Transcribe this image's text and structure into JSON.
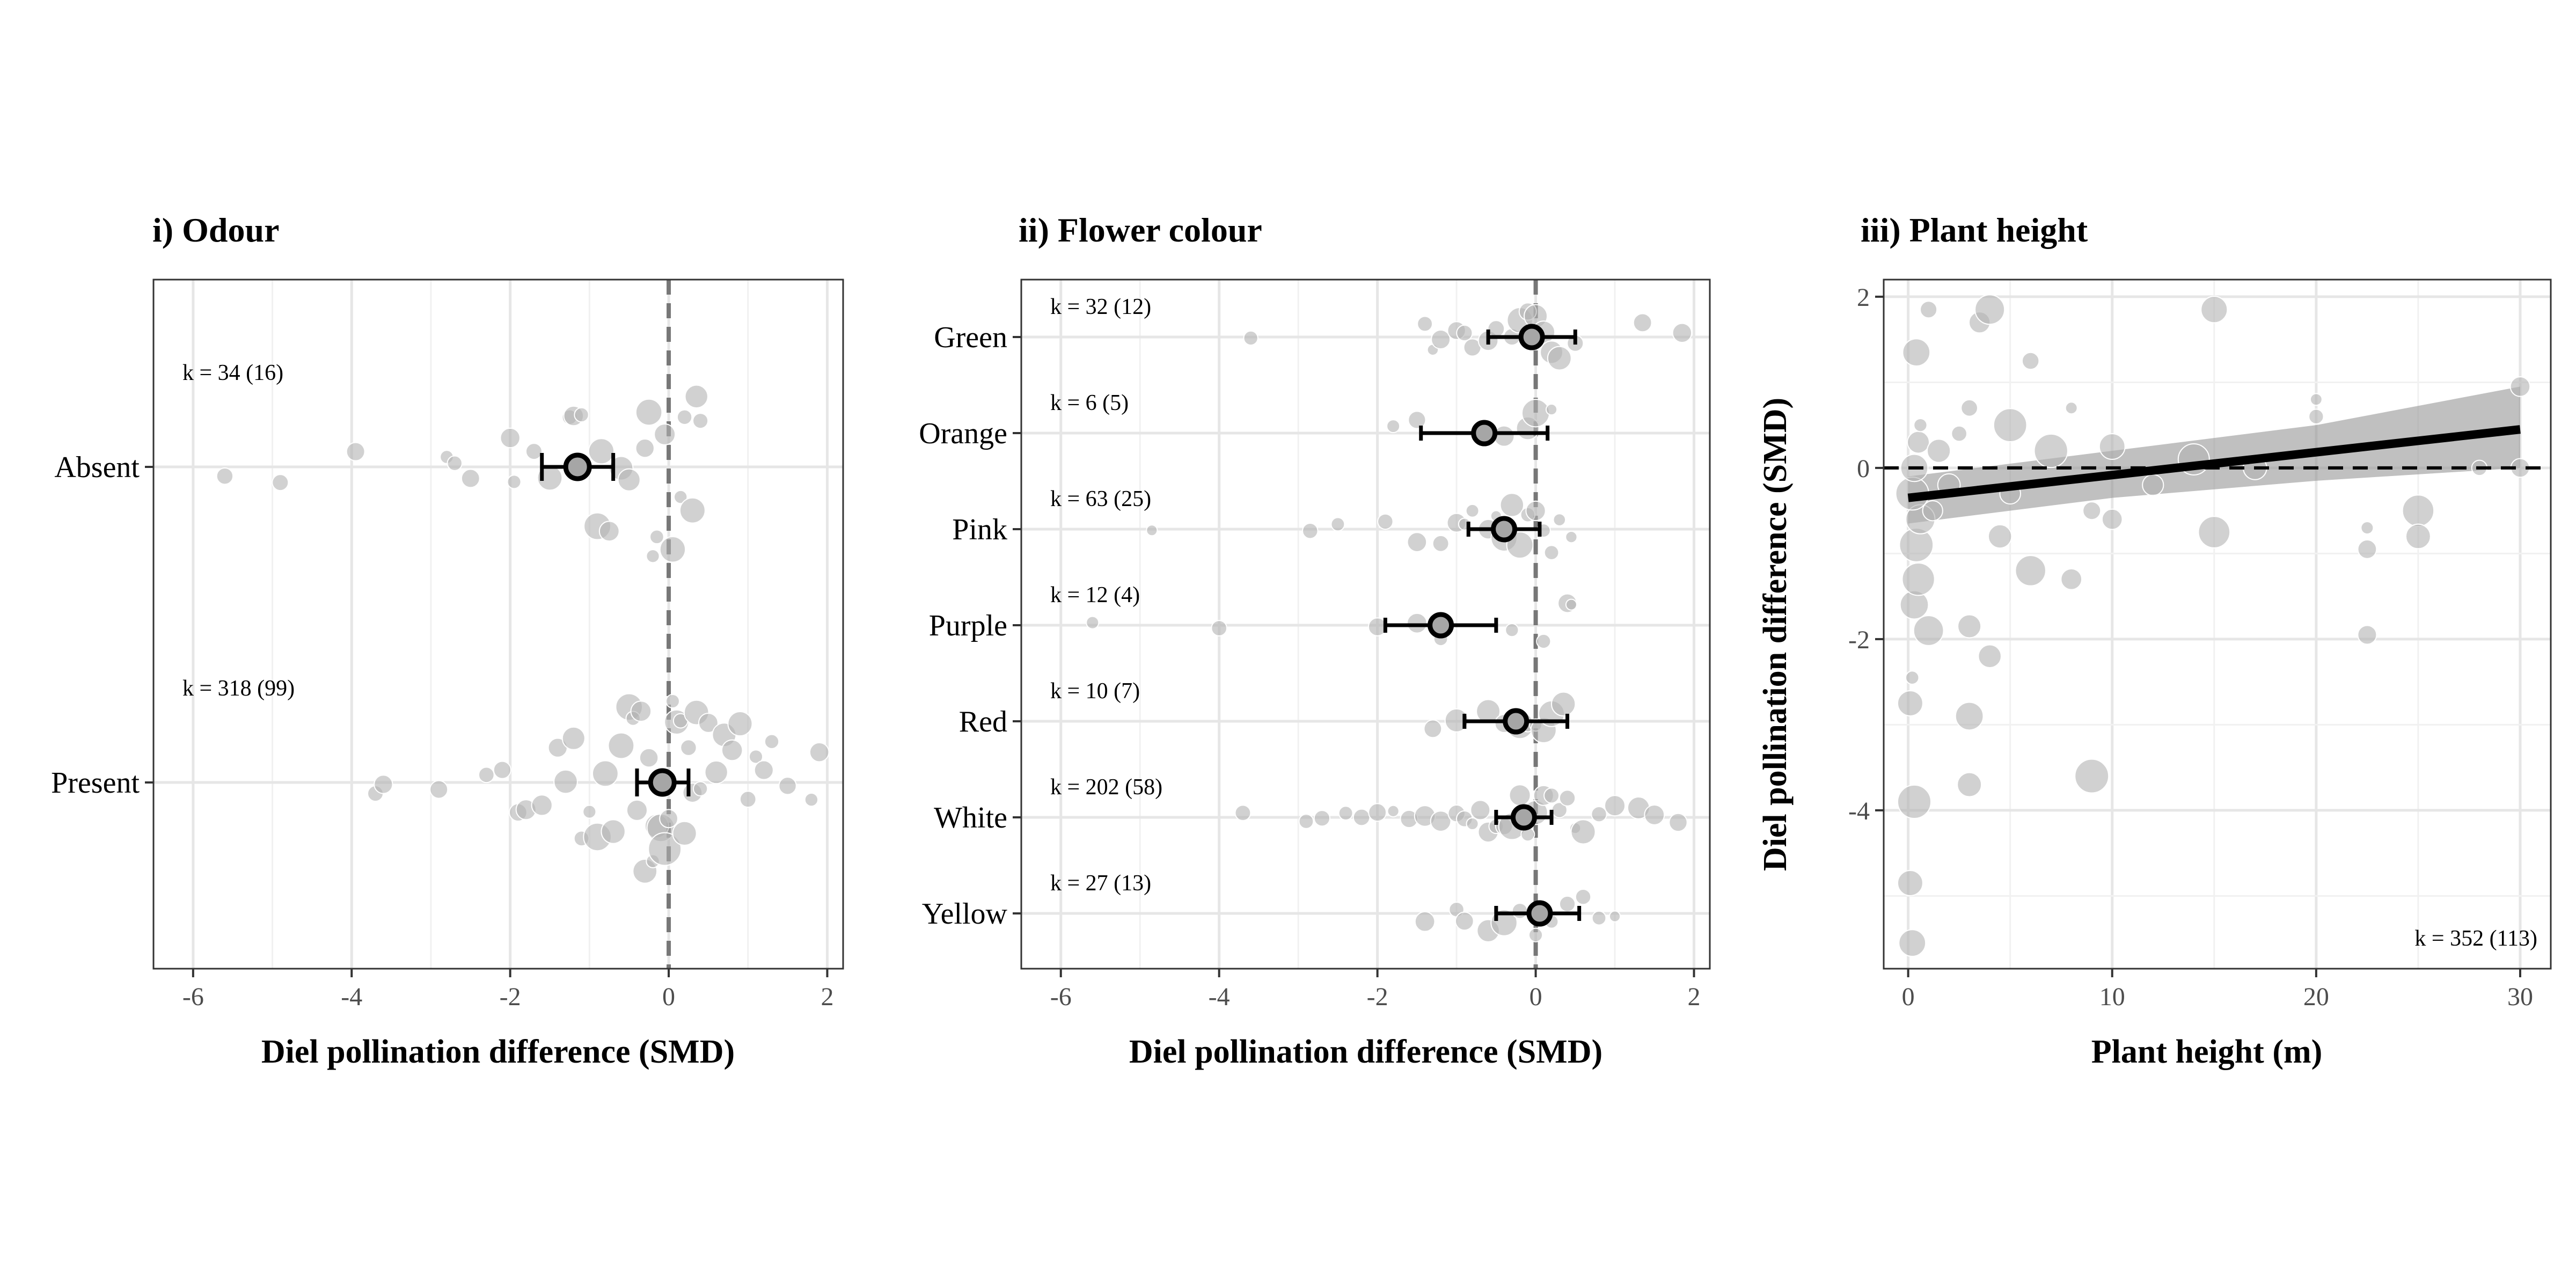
{
  "chart_data": [
    {
      "type": "forest-beeswarm",
      "title": "i) Odour",
      "xlabel": "Diel pollination difference (SMD)",
      "xlim": [
        -6.5,
        2.2
      ],
      "xticks": [
        "-6",
        "-4",
        "-2",
        "0",
        "2"
      ],
      "xtick_values": [
        -6,
        -4,
        -2,
        0,
        2
      ],
      "zero_line": "dashed",
      "categories": [
        "Absent",
        "Present"
      ],
      "estimates": [
        {
          "category": "Absent",
          "estimate": -1.15,
          "ci": [
            -1.6,
            -0.7
          ],
          "k_label": "k = 34 (16)"
        },
        {
          "category": "Present",
          "estimate": -0.08,
          "ci": [
            -0.4,
            0.25
          ],
          "k_label": "k = 318 (99)"
        }
      ],
      "observations": [
        {
          "category": "Absent",
          "values": [
            -5.6,
            -4.9,
            -3.95,
            -2.8,
            -2.7,
            -2.5,
            -2.0,
            -1.95,
            -1.7,
            -1.5,
            -1.25,
            -1.2,
            -1.1,
            -0.9,
            -0.85,
            -0.75,
            -0.6,
            -0.5,
            -0.3,
            -0.25,
            -0.2,
            -0.15,
            -0.05,
            0.05,
            0.15,
            0.2,
            0.3,
            0.35,
            0.4
          ]
        },
        {
          "category": "Present",
          "values": [
            -3.7,
            -3.6,
            -2.9,
            -2.3,
            -2.1,
            -1.9,
            -1.8,
            -1.6,
            -1.4,
            -1.3,
            -1.2,
            -1.1,
            -1.0,
            -0.9,
            -0.8,
            -0.7,
            -0.6,
            -0.5,
            -0.45,
            -0.4,
            -0.35,
            -0.3,
            -0.25,
            -0.2,
            -0.15,
            -0.1,
            -0.05,
            0.0,
            0.05,
            0.1,
            0.15,
            0.2,
            0.25,
            0.3,
            0.35,
            0.4,
            0.5,
            0.6,
            0.7,
            0.8,
            0.9,
            1.0,
            1.1,
            1.2,
            1.3,
            1.5,
            1.8,
            1.9
          ]
        }
      ]
    },
    {
      "type": "forest-beeswarm",
      "title": "ii) Flower colour",
      "xlabel": "Diel pollination difference (SMD)",
      "xlim": [
        -6.5,
        2.2
      ],
      "xticks": [
        "-6",
        "-4",
        "-2",
        "0",
        "2"
      ],
      "xtick_values": [
        -6,
        -4,
        -2,
        0,
        2
      ],
      "zero_line": "dashed",
      "categories": [
        "Green",
        "Orange",
        "Pink",
        "Purple",
        "Red",
        "White",
        "Yellow"
      ],
      "estimates": [
        {
          "category": "Green",
          "estimate": -0.05,
          "ci": [
            -0.6,
            0.5
          ],
          "k_label": "k = 32 (12)"
        },
        {
          "category": "Orange",
          "estimate": -0.65,
          "ci": [
            -1.45,
            0.15
          ],
          "k_label": "k = 6 (5)"
        },
        {
          "category": "Pink",
          "estimate": -0.4,
          "ci": [
            -0.85,
            0.05
          ],
          "k_label": "k = 63 (25)"
        },
        {
          "category": "Purple",
          "estimate": -1.2,
          "ci": [
            -1.9,
            -0.5
          ],
          "k_label": "k = 12 (4)"
        },
        {
          "category": "Red",
          "estimate": -0.25,
          "ci": [
            -0.9,
            0.4
          ],
          "k_label": "k = 10 (7)"
        },
        {
          "category": "White",
          "estimate": -0.15,
          "ci": [
            -0.5,
            0.2
          ],
          "k_label": "k = 202 (58)"
        },
        {
          "category": "Yellow",
          "estimate": 0.05,
          "ci": [
            -0.5,
            0.55
          ],
          "k_label": "k = 27 (13)"
        }
      ],
      "observations": [
        {
          "category": "Green",
          "values": [
            -3.6,
            -1.4,
            -1.3,
            -1.2,
            -1.0,
            -0.9,
            -0.8,
            -0.6,
            -0.5,
            -0.3,
            -0.2,
            -0.1,
            0.0,
            0.1,
            0.2,
            0.3,
            0.5,
            1.35,
            1.85
          ]
        },
        {
          "category": "Orange",
          "values": [
            -1.8,
            -1.5,
            -0.4,
            -0.1,
            0.0,
            0.2
          ]
        },
        {
          "category": "Pink",
          "values": [
            -4.85,
            -2.85,
            -2.5,
            -1.9,
            -1.5,
            -1.2,
            -1.0,
            -0.9,
            -0.8,
            -0.6,
            -0.5,
            -0.4,
            -0.3,
            -0.2,
            -0.1,
            0.0,
            0.1,
            0.2,
            0.3,
            0.45
          ]
        },
        {
          "category": "Purple",
          "values": [
            -5.6,
            -4.0,
            -2.0,
            -1.5,
            -1.2,
            -0.3,
            0.1,
            0.4,
            0.45
          ]
        },
        {
          "category": "Red",
          "values": [
            -1.3,
            -1.0,
            -0.6,
            -0.4,
            -0.2,
            -0.1,
            0.0,
            0.1,
            0.2,
            0.35
          ]
        },
        {
          "category": "White",
          "values": [
            -3.7,
            -2.9,
            -2.7,
            -2.4,
            -2.2,
            -2.0,
            -1.8,
            -1.6,
            -1.4,
            -1.2,
            -1.0,
            -0.9,
            -0.8,
            -0.7,
            -0.6,
            -0.5,
            -0.4,
            -0.3,
            -0.2,
            -0.1,
            0.0,
            0.1,
            0.2,
            0.3,
            0.4,
            0.5,
            0.6,
            0.8,
            1.0,
            1.3,
            1.5,
            1.8
          ]
        },
        {
          "category": "Yellow",
          "values": [
            -1.4,
            -1.0,
            -0.9,
            -0.6,
            -0.4,
            -0.2,
            0.0,
            0.2,
            0.4,
            0.6,
            0.8,
            1.0
          ]
        }
      ]
    },
    {
      "type": "scatter",
      "title": "iii) Plant height",
      "xlabel": "Plant height (m)",
      "ylabel": "Diel pollination difference (SMD)",
      "xlim": [
        -1.2,
        31.5
      ],
      "ylim": [
        -5.85,
        2.2
      ],
      "xticks": [
        "0",
        "10",
        "20",
        "30"
      ],
      "xtick_values": [
        0,
        10,
        20,
        30
      ],
      "yticks": [
        "2",
        "0",
        "-2",
        "-4"
      ],
      "ytick_values": [
        2,
        0,
        -2,
        -4
      ],
      "zero_line": "dashed",
      "k_label": "k = 352 (113)",
      "fit_line": {
        "x": [
          0,
          30
        ],
        "y": [
          -0.35,
          0.45
        ]
      },
      "confidence_band": {
        "x": [
          0,
          10,
          20,
          30
        ],
        "lower": [
          -0.65,
          -0.35,
          -0.15,
          0.0
        ],
        "upper": [
          -0.1,
          0.2,
          0.5,
          0.95
        ]
      },
      "points": [
        {
          "x": 0.1,
          "y": -4.85
        },
        {
          "x": 0.2,
          "y": -5.55
        },
        {
          "x": 0.3,
          "y": -3.9
        },
        {
          "x": 0.1,
          "y": -2.75
        },
        {
          "x": 0.2,
          "y": -2.45
        },
        {
          "x": 0.3,
          "y": -1.6
        },
        {
          "x": 0.5,
          "y": -1.3
        },
        {
          "x": 0.4,
          "y": -0.9
        },
        {
          "x": 0.6,
          "y": -0.6
        },
        {
          "x": 0.2,
          "y": -0.3
        },
        {
          "x": 0.3,
          "y": 0.0
        },
        {
          "x": 0.5,
          "y": 0.3
        },
        {
          "x": 0.6,
          "y": 0.5
        },
        {
          "x": 0.4,
          "y": 1.35
        },
        {
          "x": 1.0,
          "y": 1.85
        },
        {
          "x": 1.0,
          "y": -1.9
        },
        {
          "x": 1.2,
          "y": -0.5
        },
        {
          "x": 1.5,
          "y": 0.2
        },
        {
          "x": 2.0,
          "y": -0.2
        },
        {
          "x": 2.5,
          "y": 0.4
        },
        {
          "x": 3.0,
          "y": -2.9
        },
        {
          "x": 3.0,
          "y": -3.7
        },
        {
          "x": 3.0,
          "y": -1.85
        },
        {
          "x": 3.0,
          "y": 0.7
        },
        {
          "x": 3.5,
          "y": 1.7
        },
        {
          "x": 4.0,
          "y": 1.85
        },
        {
          "x": 4.0,
          "y": -2.2
        },
        {
          "x": 4.5,
          "y": -0.8
        },
        {
          "x": 5.0,
          "y": -0.3
        },
        {
          "x": 5.0,
          "y": 0.5
        },
        {
          "x": 6.0,
          "y": 1.25
        },
        {
          "x": 6.0,
          "y": -1.2
        },
        {
          "x": 7.0,
          "y": 0.2
        },
        {
          "x": 8.0,
          "y": 0.7
        },
        {
          "x": 8.0,
          "y": -1.3
        },
        {
          "x": 9.0,
          "y": -3.6
        },
        {
          "x": 9.0,
          "y": -0.5
        },
        {
          "x": 10.0,
          "y": 0.25
        },
        {
          "x": 10.0,
          "y": -0.6
        },
        {
          "x": 12.0,
          "y": -0.2
        },
        {
          "x": 14.0,
          "y": 0.1
        },
        {
          "x": 15.0,
          "y": 1.85
        },
        {
          "x": 15.0,
          "y": -0.75
        },
        {
          "x": 17.0,
          "y": 0.0
        },
        {
          "x": 20.0,
          "y": 0.6
        },
        {
          "x": 20.0,
          "y": 0.8
        },
        {
          "x": 22.5,
          "y": -0.7
        },
        {
          "x": 22.5,
          "y": -0.95
        },
        {
          "x": 22.5,
          "y": -1.95
        },
        {
          "x": 25.0,
          "y": -0.5
        },
        {
          "x": 25.0,
          "y": -0.8
        },
        {
          "x": 28.0,
          "y": 0.0
        },
        {
          "x": 30.0,
          "y": 0.95
        },
        {
          "x": 30.0,
          "y": 0.0
        }
      ]
    }
  ]
}
